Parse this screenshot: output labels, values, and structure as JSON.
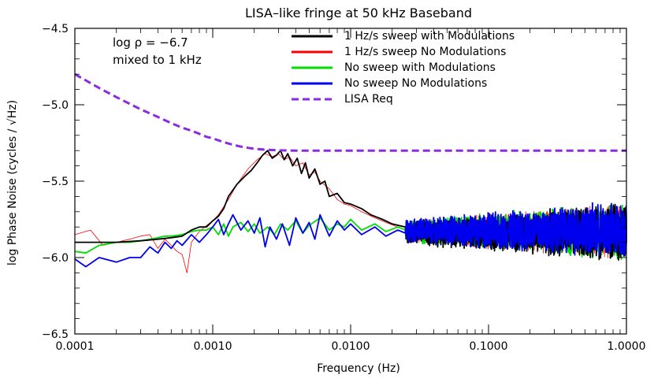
{
  "chart_data": {
    "type": "line",
    "title": "LISA–like fringe at 50 kHz Baseband",
    "xlabel": "Frequency (Hz)",
    "ylabel": "log Phase Noise (cycles / √Hz)",
    "xscale": "log",
    "xlim": [
      0.0001,
      1.0
    ],
    "ylim": [
      -6.5,
      -4.5
    ],
    "xticks": [
      0.0001,
      0.001,
      0.01,
      0.1,
      1.0
    ],
    "xtick_labels": [
      "0.0001",
      "0.0010",
      "0.0100",
      "0.1000",
      "1.0000"
    ],
    "yticks": [
      -6.5,
      -6.0,
      -5.5,
      -5.0,
      -4.5
    ],
    "ytick_labels": [
      "−6.5",
      "−6.0",
      "−5.5",
      "−5.0",
      "−4.5"
    ],
    "annotations": [
      "log ρ = −6.7",
      "mixed to 1 kHz"
    ],
    "legend_position": "top-right",
    "grid": false,
    "series": [
      {
        "name": "1 Hz/s sweep with Modulations",
        "color": "#000000",
        "style": "solid",
        "x": [
          0.0001,
          0.00015,
          0.0002,
          0.0003,
          0.0004,
          0.0005,
          0.0006,
          0.0007,
          0.0008,
          0.0009,
          0.001,
          0.0011,
          0.0012,
          0.0013,
          0.0015,
          0.0017,
          0.0019,
          0.0021,
          0.0023,
          0.0025,
          0.0027,
          0.0029,
          0.0031,
          0.0033,
          0.0035,
          0.0038,
          0.0041,
          0.0044,
          0.0047,
          0.005,
          0.0055,
          0.006,
          0.0065,
          0.007,
          0.008,
          0.009,
          0.01,
          0.012,
          0.014,
          0.017,
          0.02,
          0.025
        ],
        "y": [
          -5.9,
          -5.9,
          -5.9,
          -5.89,
          -5.88,
          -5.87,
          -5.86,
          -5.82,
          -5.8,
          -5.8,
          -5.76,
          -5.73,
          -5.68,
          -5.6,
          -5.52,
          -5.47,
          -5.43,
          -5.38,
          -5.33,
          -5.3,
          -5.35,
          -5.33,
          -5.3,
          -5.36,
          -5.32,
          -5.4,
          -5.35,
          -5.45,
          -5.38,
          -5.48,
          -5.42,
          -5.52,
          -5.5,
          -5.6,
          -5.58,
          -5.64,
          -5.65,
          -5.68,
          -5.72,
          -5.75,
          -5.78,
          -5.8
        ]
      },
      {
        "name": "1 Hz/s sweep No Modulations",
        "color": "#ff0000",
        "style": "solid",
        "x": [
          0.0001,
          0.00013,
          0.00016,
          0.0002,
          0.00025,
          0.0003,
          0.00035,
          0.0004,
          0.00045,
          0.0005,
          0.00055,
          0.0006,
          0.00065,
          0.0007,
          0.0008,
          0.0009,
          0.001,
          0.0011,
          0.0013,
          0.0015,
          0.0018,
          0.0021,
          0.0024,
          0.0027,
          0.003,
          0.0033,
          0.0036,
          0.004,
          0.0045,
          0.005,
          0.0055,
          0.006,
          0.007,
          0.008,
          0.009,
          0.01,
          0.012,
          0.015,
          0.018,
          0.022,
          0.025
        ],
        "y": [
          -5.85,
          -5.82,
          -5.92,
          -5.9,
          -5.88,
          -5.86,
          -5.85,
          -5.94,
          -5.88,
          -5.92,
          -5.96,
          -5.98,
          -6.1,
          -5.9,
          -5.83,
          -5.79,
          -5.76,
          -5.72,
          -5.62,
          -5.52,
          -5.42,
          -5.36,
          -5.32,
          -5.34,
          -5.32,
          -5.36,
          -5.34,
          -5.4,
          -5.38,
          -5.46,
          -5.44,
          -5.5,
          -5.55,
          -5.62,
          -5.65,
          -5.66,
          -5.7,
          -5.74,
          -5.77,
          -5.8,
          -5.82
        ]
      },
      {
        "name": "No sweep with Modulations",
        "color": "#00dd00",
        "style": "solid",
        "x": [
          0.0001,
          0.00012,
          0.00015,
          0.0002,
          0.00025,
          0.0003,
          0.00035,
          0.0004,
          0.00045,
          0.0005,
          0.0006,
          0.0007,
          0.0008,
          0.0009,
          0.001,
          0.0011,
          0.0012,
          0.0013,
          0.0014,
          0.0016,
          0.0018,
          0.002,
          0.0022,
          0.0025,
          0.0028,
          0.0031,
          0.0035,
          0.004,
          0.0045,
          0.005,
          0.006,
          0.007,
          0.008,
          0.009,
          0.01,
          0.012,
          0.015,
          0.018,
          0.022,
          0.025
        ],
        "y": [
          -5.96,
          -5.97,
          -5.92,
          -5.9,
          -5.9,
          -5.89,
          -5.88,
          -5.87,
          -5.86,
          -5.86,
          -5.85,
          -5.83,
          -5.82,
          -5.82,
          -5.8,
          -5.85,
          -5.78,
          -5.86,
          -5.8,
          -5.77,
          -5.83,
          -5.78,
          -5.84,
          -5.8,
          -5.85,
          -5.78,
          -5.82,
          -5.76,
          -5.84,
          -5.79,
          -5.74,
          -5.82,
          -5.78,
          -5.8,
          -5.75,
          -5.82,
          -5.78,
          -5.83,
          -5.8,
          -5.82
        ]
      },
      {
        "name": "No sweep No Modulations",
        "color": "#0000ee",
        "style": "solid",
        "x": [
          0.0001,
          0.00012,
          0.00015,
          0.0002,
          0.00025,
          0.0003,
          0.00035,
          0.0004,
          0.00045,
          0.0005,
          0.00055,
          0.0006,
          0.0007,
          0.0008,
          0.0009,
          0.001,
          0.0011,
          0.0012,
          0.0013,
          0.0014,
          0.0016,
          0.0018,
          0.002,
          0.0022,
          0.0024,
          0.0026,
          0.0029,
          0.0032,
          0.0036,
          0.004,
          0.0045,
          0.005,
          0.0055,
          0.006,
          0.007,
          0.008,
          0.009,
          0.01,
          0.012,
          0.015,
          0.018,
          0.022,
          0.025
        ],
        "y": [
          -6.01,
          -6.06,
          -6.0,
          -6.03,
          -6.0,
          -6.0,
          -5.93,
          -5.97,
          -5.9,
          -5.94,
          -5.89,
          -5.92,
          -5.85,
          -5.9,
          -5.85,
          -5.8,
          -5.75,
          -5.85,
          -5.78,
          -5.72,
          -5.82,
          -5.76,
          -5.84,
          -5.74,
          -5.93,
          -5.8,
          -5.88,
          -5.78,
          -5.92,
          -5.74,
          -5.84,
          -5.77,
          -5.88,
          -5.72,
          -5.86,
          -5.76,
          -5.82,
          -5.78,
          -5.85,
          -5.8,
          -5.86,
          -5.82,
          -5.84
        ]
      },
      {
        "name": "LISA Req",
        "color": "#8a2be2",
        "style": "dashed",
        "x": [
          0.0001,
          0.00015,
          0.0002,
          0.0003,
          0.0004,
          0.0005,
          0.0006,
          0.0007,
          0.0008,
          0.0009,
          0.001,
          0.0012,
          0.0014,
          0.0016,
          0.0018,
          0.002,
          0.0023,
          0.0026,
          0.003,
          0.0035,
          0.004,
          0.005,
          0.007,
          0.01,
          0.02,
          0.05,
          0.1,
          0.2,
          0.5,
          1.0
        ],
        "y": [
          -4.8,
          -4.89,
          -4.95,
          -5.03,
          -5.08,
          -5.12,
          -5.15,
          -5.17,
          -5.19,
          -5.21,
          -5.22,
          -5.245,
          -5.262,
          -5.274,
          -5.282,
          -5.288,
          -5.293,
          -5.296,
          -5.298,
          -5.299,
          -5.3,
          -5.3,
          -5.3,
          -5.3,
          -5.3,
          -5.3,
          -5.3,
          -5.3,
          -5.3,
          -5.3
        ]
      }
    ],
    "noise_band": {
      "x_range": [
        0.025,
        1.0
      ],
      "center": -5.83,
      "spread": [
        0.08,
        0.2
      ],
      "series_colors": [
        "#ff0000",
        "#00dd00",
        "#000000",
        "#0000ee"
      ]
    }
  }
}
